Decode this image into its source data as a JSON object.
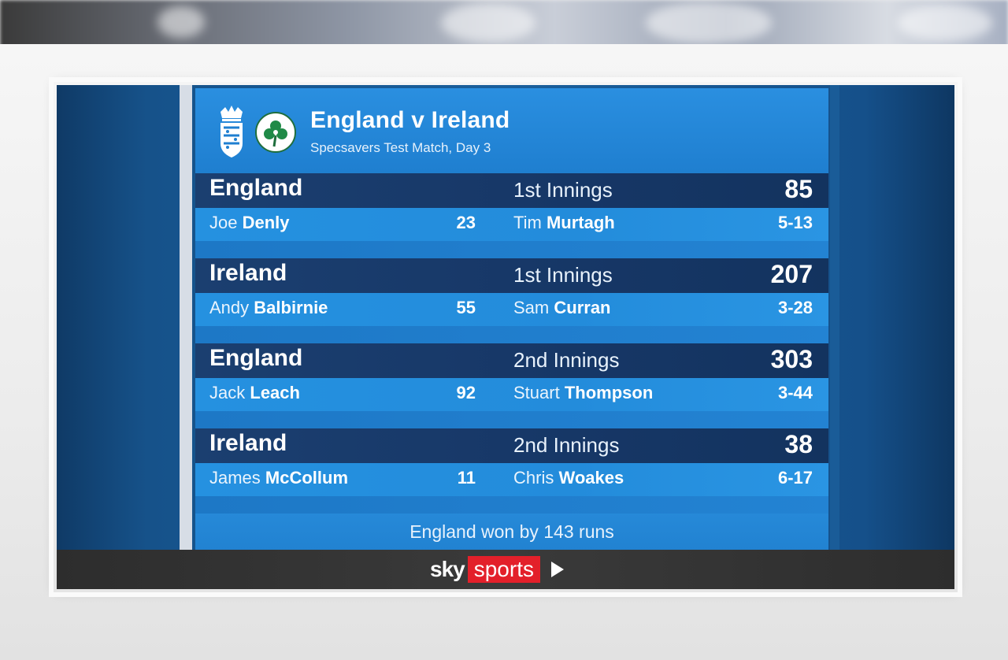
{
  "header": {
    "title": "England v Ireland",
    "subtitle": "Specsavers Test Match, Day 3"
  },
  "innings": [
    {
      "team": "England",
      "label": "1st Innings",
      "total": "85",
      "batter_first": "Joe",
      "batter_last": "Denly",
      "batter_score": "23",
      "bowler_first": "Tim",
      "bowler_last": "Murtagh",
      "bowler_figures": "5-13"
    },
    {
      "team": "Ireland",
      "label": "1st Innings",
      "total": "207",
      "batter_first": "Andy",
      "batter_last": "Balbirnie",
      "batter_score": "55",
      "bowler_first": "Sam",
      "bowler_last": "Curran",
      "bowler_figures": "3-28"
    },
    {
      "team": "England",
      "label": "2nd Innings",
      "total": "303",
      "batter_first": "Jack",
      "batter_last": "Leach",
      "batter_score": "92",
      "bowler_first": "Stuart",
      "bowler_last": "Thompson",
      "bowler_figures": "3-44"
    },
    {
      "team": "Ireland",
      "label": "2nd Innings",
      "total": "38",
      "batter_first": "James",
      "batter_last": "McCollum",
      "batter_score": "11",
      "bowler_first": "Chris",
      "bowler_last": "Woakes",
      "bowler_figures": "6-17"
    }
  ],
  "result": "England won by 143 runs",
  "footer": {
    "brand_sky": "sky",
    "brand_sports": "sports",
    "icons": [
      "play-icon"
    ]
  },
  "logos": {
    "england": "ecb-crest-icon",
    "ireland": "shamrock-cricket-logo"
  },
  "colors": {
    "band": "#163a6a",
    "row": "#238cdb",
    "sky_red": "#e3202a"
  }
}
